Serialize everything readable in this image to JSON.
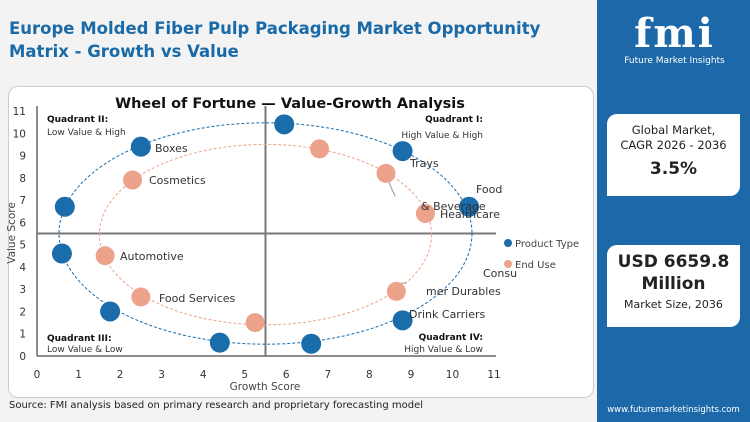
{
  "title": "Europe Molded Fiber Pulp Packaging Market Opportunity Matrix - Growth vs Value",
  "source": "Source: FMI analysis based on primary research and proprietary forecasting model",
  "sidebar": {
    "logo_text": "fmi",
    "logo_sub": "Future Market Insights",
    "cagr_label_1": "Global Market,",
    "cagr_label_2": "CAGR 2026 - 2036",
    "cagr_value": "3.5%",
    "size_value_1": "USD 6659.8",
    "size_value_2": "Million",
    "size_label": "Market Size, 2036",
    "url": "www.futuremarketinsights.com",
    "color": "#1d68a8"
  },
  "chart_data": {
    "type": "scatter",
    "title": "Wheel of Fortune — Value-Growth  Analysis",
    "xlabel": "Growth Score",
    "ylabel": "Value Score",
    "xlim": [
      0,
      11
    ],
    "ylim": [
      0,
      11
    ],
    "xticks": [
      "0",
      "1",
      "2",
      "3",
      "4",
      "5",
      "6",
      "7",
      "8",
      "9",
      "10",
      "11"
    ],
    "yticks": [
      "0",
      "1",
      "2",
      "3",
      "4",
      "5",
      "6",
      "7",
      "8",
      "9",
      "10",
      "11"
    ],
    "divider": {
      "x": 5.5,
      "y": 5.5
    },
    "legend_position": "right",
    "quadrants": [
      {
        "title": "Quadrant I:",
        "subtitle": "High Value & High"
      },
      {
        "title": "Quadrant II:",
        "subtitle": "Low Value & High"
      },
      {
        "title": "Quadrant III:",
        "subtitle": "Low Value & Low"
      },
      {
        "title": "Quadrant IV:",
        "subtitle": "High Value & Low"
      }
    ],
    "series": [
      {
        "name": "Product Type",
        "color": "#1a6cab",
        "ellipse": {
          "cx": 5.5,
          "cy": 5.5,
          "rx": 4.97,
          "ry": 4.97
        },
        "points": [
          {
            "x": 5.95,
            "y": 10.4
          },
          {
            "x": 2.5,
            "y": 9.4,
            "label": "Boxes"
          },
          {
            "x": 8.8,
            "y": 9.2,
            "label": "Trays"
          },
          {
            "x": 0.67,
            "y": 6.7
          },
          {
            "x": 10.4,
            "y": 6.7,
            "label": "Food & Beverage"
          },
          {
            "x": 0.6,
            "y": 4.6
          },
          {
            "x": 1.76,
            "y": 2.0
          },
          {
            "x": 8.8,
            "y": 1.6,
            "label": "Drink Carriers"
          },
          {
            "x": 4.4,
            "y": 0.6
          },
          {
            "x": 6.6,
            "y": 0.55
          }
        ]
      },
      {
        "name": "End Use",
        "color": "#eda38b",
        "ellipse": {
          "cx": 5.5,
          "cy": 5.45,
          "rx": 4.0,
          "ry": 4.05
        },
        "points": [
          {
            "x": 6.8,
            "y": 9.3
          },
          {
            "x": 2.3,
            "y": 7.9,
            "label": "Cosmetics"
          },
          {
            "x": 8.4,
            "y": 8.2
          },
          {
            "x": 9.35,
            "y": 6.4,
            "label": "Healthcare"
          },
          {
            "x": 1.64,
            "y": 4.5,
            "label": "Automotive"
          },
          {
            "x": 2.5,
            "y": 2.65,
            "label": "Food Services"
          },
          {
            "x": 5.25,
            "y": 1.5
          },
          {
            "x": 8.65,
            "y": 2.9,
            "label": "Consumer Durables"
          }
        ]
      }
    ]
  }
}
